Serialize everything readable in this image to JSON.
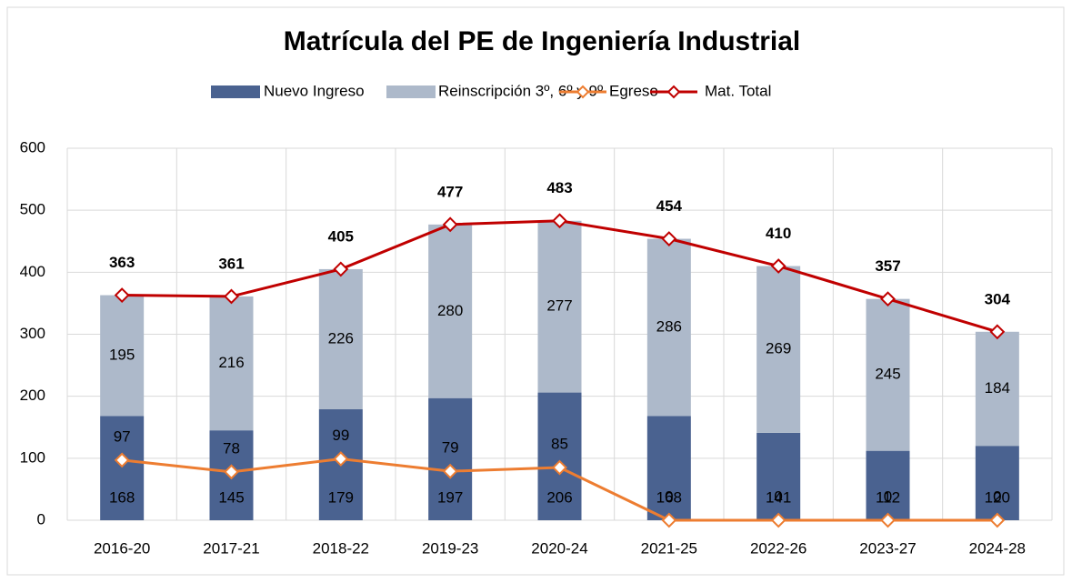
{
  "chart_data": {
    "type": "bar",
    "stacked": true,
    "title": "Matrícula del PE de Ingeniería Industrial",
    "categories": [
      "2016-20",
      "2017-21",
      "2018-22",
      "2019-23",
      "2020-24",
      "2021-25",
      "2022-26",
      "2023-27",
      "2024-28"
    ],
    "series": [
      {
        "name": "Nuevo Ingreso",
        "type": "bar",
        "color": "#4a6290",
        "values": [
          168,
          145,
          179,
          197,
          206,
          168,
          141,
          112,
          120
        ]
      },
      {
        "name": "Reinscripción 3º, 6º y 9º",
        "type": "bar",
        "color": "#adb9ca",
        "values": [
          195,
          216,
          226,
          280,
          277,
          286,
          269,
          245,
          184
        ]
      },
      {
        "name": "Egreso",
        "type": "line",
        "color": "#ed7d31",
        "values": [
          97,
          78,
          99,
          79,
          85,
          0,
          0,
          0,
          0
        ]
      },
      {
        "name": "Mat. Total",
        "type": "line",
        "color": "#c00000",
        "values": [
          363,
          361,
          405,
          477,
          483,
          454,
          410,
          357,
          304
        ]
      }
    ],
    "ylim": [
      0,
      600
    ],
    "yticks": [
      0,
      100,
      200,
      300,
      400,
      500,
      600
    ],
    "grid": true,
    "legend": "top"
  }
}
